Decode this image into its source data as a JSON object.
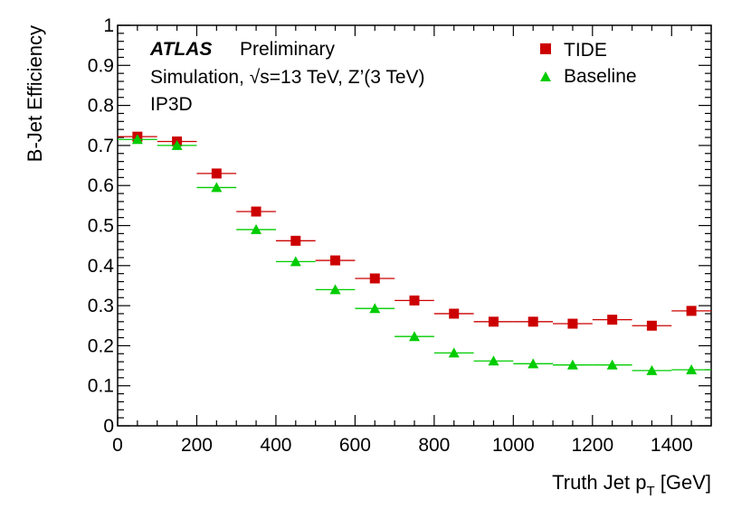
{
  "chart_data": {
    "type": "scatter",
    "title": "",
    "experiment": "ATLAS",
    "status": "Preliminary",
    "annotation_prefix": "Simulation, ",
    "annotation_sqrt": "√",
    "annotation_rest": "s=13 TeV, Z’(3 TeV)",
    "tagger": "IP3D",
    "xlabel_main": "Truth Jet p",
    "xlabel_sub": "T",
    "xlabel_unit": " [GeV]",
    "ylabel": "B-Jet Efficiency",
    "xlim": [
      0,
      1500
    ],
    "ylim": [
      0,
      1
    ],
    "x_ticks": [
      0,
      200,
      400,
      600,
      800,
      1000,
      1200,
      1400
    ],
    "y_ticks": [
      0,
      0.1,
      0.2,
      0.3,
      0.4,
      0.5,
      0.6,
      0.7,
      0.8,
      0.9,
      1
    ],
    "y_tick_labels": [
      "0",
      "0.1",
      "0.2",
      "0.3",
      "0.4",
      "0.5",
      "0.6",
      "0.7",
      "0.8",
      "0.9",
      "1"
    ],
    "bin_edges": [
      0,
      100,
      200,
      300,
      400,
      500,
      600,
      700,
      800,
      900,
      1000,
      1100,
      1200,
      1300,
      1400,
      1500
    ],
    "x": [
      50,
      150,
      250,
      350,
      450,
      550,
      650,
      750,
      850,
      950,
      1050,
      1150,
      1250,
      1350,
      1450
    ],
    "series": [
      {
        "name": "TIDE",
        "marker": "square",
        "color": "#cc0000",
        "values": [
          0.722,
          0.71,
          0.63,
          0.535,
          0.462,
          0.413,
          0.368,
          0.313,
          0.28,
          0.26,
          0.26,
          0.255,
          0.265,
          0.25,
          0.287
        ]
      },
      {
        "name": "Baseline",
        "marker": "triangle",
        "color": "#00cc00",
        "values": [
          0.715,
          0.7,
          0.595,
          0.49,
          0.41,
          0.34,
          0.293,
          0.223,
          0.182,
          0.162,
          0.155,
          0.152,
          0.152,
          0.138,
          0.14
        ]
      }
    ]
  }
}
